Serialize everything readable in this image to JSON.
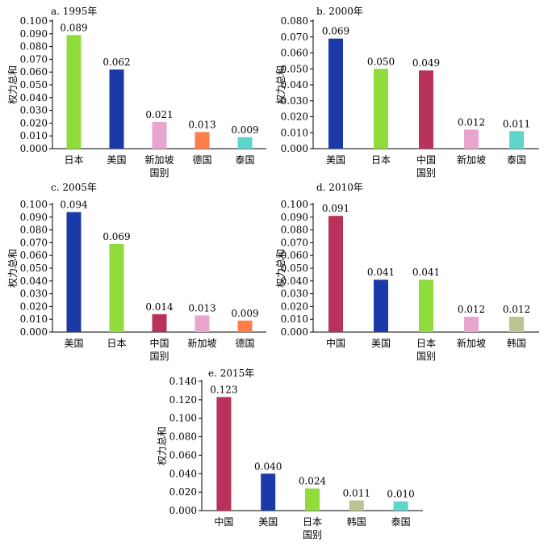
{
  "chart_data": [
    {
      "type": "bar",
      "title": "a. 1995年",
      "ylabel": "权力总和",
      "xlabel": "国别",
      "ylim": [
        0,
        0.1
      ],
      "yticks": [
        "0.000",
        "0.010",
        "0.020",
        "0.030",
        "0.040",
        "0.050",
        "0.060",
        "0.070",
        "0.080",
        "0.090",
        "0.100"
      ],
      "categories": [
        "日本",
        "美国",
        "新加坡",
        "德国",
        "泰国"
      ],
      "values": [
        0.089,
        0.062,
        0.021,
        0.013,
        0.009
      ],
      "value_labels": [
        "0.089",
        "0.062",
        "0.021",
        "0.013",
        "0.009"
      ],
      "colors": [
        "#8fdc3c",
        "#1a3aa8",
        "#e8a6cf",
        "#ff7d4a",
        "#5ed6cc"
      ]
    },
    {
      "type": "bar",
      "title": "b. 2000年",
      "ylabel": "权力总和",
      "xlabel": "国别",
      "ylim": [
        0,
        0.08
      ],
      "yticks": [
        "0.000",
        "0.010",
        "0.020",
        "0.030",
        "0.040",
        "0.050",
        "0.060",
        "0.070",
        "0.080"
      ],
      "categories": [
        "美国",
        "日本",
        "中国",
        "新加坡",
        "泰国"
      ],
      "values": [
        0.069,
        0.05,
        0.049,
        0.012,
        0.011
      ],
      "value_labels": [
        "0.069",
        "0.050",
        "0.049",
        "0.012",
        "0.011"
      ],
      "colors": [
        "#1a3aa8",
        "#8fdc3c",
        "#b8325a",
        "#e8a6cf",
        "#5ed6cc"
      ]
    },
    {
      "type": "bar",
      "title": "c. 2005年",
      "ylabel": "权力总和",
      "xlabel": "国别",
      "ylim": [
        0,
        0.1
      ],
      "yticks": [
        "0.000",
        "0.010",
        "0.020",
        "0.030",
        "0.040",
        "0.050",
        "0.060",
        "0.070",
        "0.080",
        "0.090",
        "0.100"
      ],
      "categories": [
        "美国",
        "日本",
        "中国",
        "新加坡",
        "德国"
      ],
      "values": [
        0.094,
        0.069,
        0.014,
        0.013,
        0.009
      ],
      "value_labels": [
        "0.094",
        "0.069",
        "0.014",
        "0.013",
        "0.009"
      ],
      "colors": [
        "#1a3aa8",
        "#8fdc3c",
        "#b8325a",
        "#e8a6cf",
        "#ff7d4a"
      ]
    },
    {
      "type": "bar",
      "title": "d. 2010年",
      "ylabel": "权力总和",
      "xlabel": "国别",
      "ylim": [
        0,
        0.1
      ],
      "yticks": [
        "0.000",
        "0.010",
        "0.020",
        "0.030",
        "0.040",
        "0.050",
        "0.060",
        "0.070",
        "0.080",
        "0.090",
        "0.100"
      ],
      "categories": [
        "中国",
        "美国",
        "日本",
        "新加坡",
        "韩国"
      ],
      "values": [
        0.091,
        0.041,
        0.041,
        0.012,
        0.012
      ],
      "value_labels": [
        "0.091",
        "0.041",
        "0.041",
        "0.012",
        "0.012"
      ],
      "colors": [
        "#b8325a",
        "#1a3aa8",
        "#8fdc3c",
        "#e8a6cf",
        "#bcc494"
      ]
    },
    {
      "type": "bar",
      "title": "e. 2015年",
      "ylabel": "权力总和",
      "xlabel": "国别",
      "ylim": [
        0,
        0.14
      ],
      "yticks": [
        "0.000",
        "0.020",
        "0.040",
        "0.060",
        "0.080",
        "0.100",
        "0.120",
        "0.140"
      ],
      "categories": [
        "中国",
        "美国",
        "日本",
        "韩国",
        "泰国"
      ],
      "values": [
        0.123,
        0.04,
        0.024,
        0.011,
        0.01
      ],
      "value_labels": [
        "0.123",
        "0.040",
        "0.024",
        "0.011",
        "0.010"
      ],
      "colors": [
        "#b8325a",
        "#1a3aa8",
        "#8fdc3c",
        "#bcc494",
        "#5ed6cc"
      ]
    }
  ]
}
